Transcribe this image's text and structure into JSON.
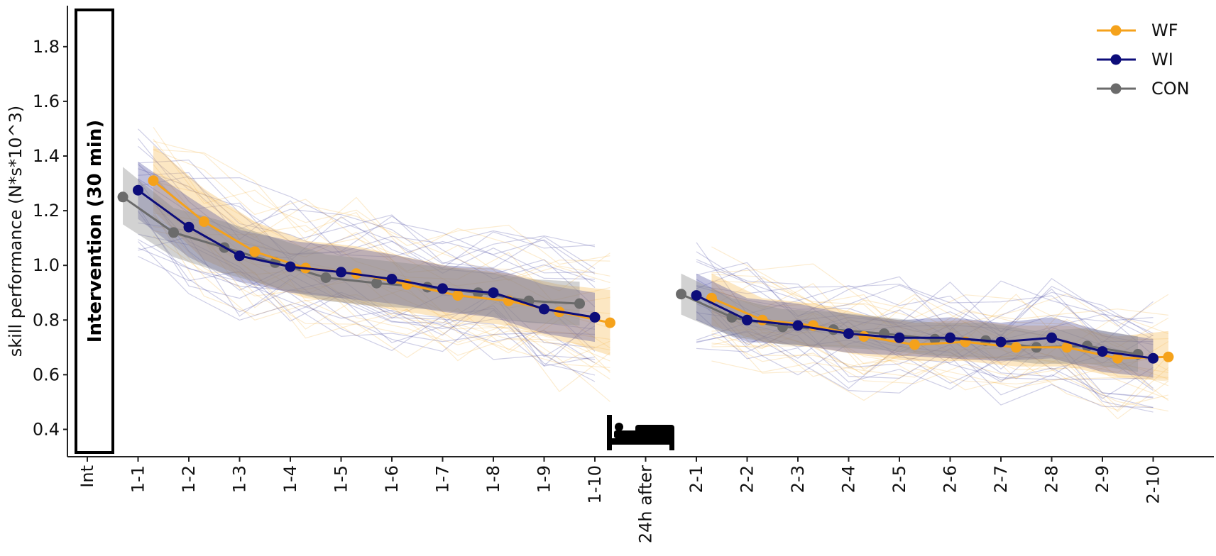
{
  "chart_data": {
    "type": "line",
    "title": "",
    "ylabel": "skill performance (N*s*10^3)",
    "xlabel": "",
    "ylim": [
      0.3,
      1.95
    ],
    "yticks": [
      0.4,
      0.6,
      0.8,
      1.0,
      1.2,
      1.4,
      1.6,
      1.8
    ],
    "ytick_labels": [
      "0.4",
      "0.6",
      "0.8",
      "1.0",
      "1.2",
      "1.4",
      "1.6",
      "1.8"
    ],
    "categories": [
      "Int",
      "1-1",
      "1-2",
      "1-3",
      "1-4",
      "1-5",
      "1-6",
      "1-7",
      "1-8",
      "1-9",
      "1-10",
      "24h after",
      "2-1",
      "2-2",
      "2-3",
      "2-4",
      "2-5",
      "2-6",
      "2-7",
      "2-8",
      "2-9",
      "2-10"
    ],
    "intervention_label": "Intervention (30 min)",
    "sleep_icon": "bed-icon",
    "legend_position": "top-right",
    "colors": {
      "WF": "#f5a21b",
      "WI": "#0d0d7a",
      "CON": "#6b6b6b",
      "WF_band": "#f7c46a",
      "WI_band": "#4b4b9a",
      "CON_band": "#8f8f8f"
    },
    "series": [
      {
        "name": "WF",
        "offset": 0.3,
        "values": [
          null,
          1.31,
          1.16,
          1.05,
          0.99,
          0.97,
          0.93,
          0.89,
          0.87,
          0.83,
          0.79,
          null,
          0.88,
          0.8,
          0.78,
          0.74,
          0.71,
          0.72,
          0.7,
          0.7,
          0.66,
          0.665
        ],
        "lower": [
          null,
          1.2,
          1.02,
          0.94,
          0.88,
          0.86,
          0.83,
          0.8,
          0.78,
          0.73,
          0.67,
          null,
          0.78,
          0.72,
          0.7,
          0.67,
          0.65,
          0.65,
          0.63,
          0.63,
          0.59,
          0.58
        ],
        "upper": [
          null,
          1.44,
          1.28,
          1.16,
          1.09,
          1.07,
          1.03,
          0.99,
          0.97,
          0.93,
          0.91,
          null,
          0.97,
          0.88,
          0.86,
          0.82,
          0.79,
          0.8,
          0.78,
          0.78,
          0.74,
          0.76
        ]
      },
      {
        "name": "WI",
        "offset": 0.0,
        "values": [
          null,
          1.275,
          1.14,
          1.035,
          0.995,
          0.975,
          0.95,
          0.915,
          0.9,
          0.84,
          0.81,
          null,
          0.89,
          0.8,
          0.78,
          0.75,
          0.735,
          0.735,
          0.72,
          0.735,
          0.685,
          0.66
        ],
        "lower": [
          null,
          1.17,
          1.03,
          0.94,
          0.9,
          0.88,
          0.86,
          0.83,
          0.81,
          0.75,
          0.72,
          null,
          0.8,
          0.72,
          0.71,
          0.68,
          0.67,
          0.66,
          0.65,
          0.66,
          0.61,
          0.59
        ],
        "upper": [
          null,
          1.38,
          1.25,
          1.13,
          1.09,
          1.07,
          1.04,
          1.0,
          0.99,
          0.93,
          0.9,
          null,
          0.97,
          0.88,
          0.86,
          0.82,
          0.8,
          0.81,
          0.79,
          0.81,
          0.76,
          0.73
        ]
      },
      {
        "name": "CON",
        "offset": -0.3,
        "values": [
          null,
          1.25,
          1.12,
          1.065,
          1.01,
          0.955,
          0.935,
          0.92,
          0.9,
          0.87,
          0.86,
          null,
          0.895,
          0.81,
          0.775,
          0.765,
          0.75,
          0.73,
          0.725,
          0.7,
          0.705,
          0.675
        ],
        "lower": [
          null,
          1.15,
          1.03,
          0.97,
          0.92,
          0.87,
          0.85,
          0.84,
          0.82,
          0.79,
          0.78,
          null,
          0.82,
          0.74,
          0.71,
          0.7,
          0.69,
          0.67,
          0.66,
          0.64,
          0.64,
          0.61
        ],
        "upper": [
          null,
          1.36,
          1.21,
          1.16,
          1.1,
          1.04,
          1.02,
          1.0,
          0.98,
          0.95,
          0.94,
          null,
          0.97,
          0.88,
          0.84,
          0.83,
          0.81,
          0.79,
          0.79,
          0.76,
          0.77,
          0.74
        ]
      }
    ]
  }
}
